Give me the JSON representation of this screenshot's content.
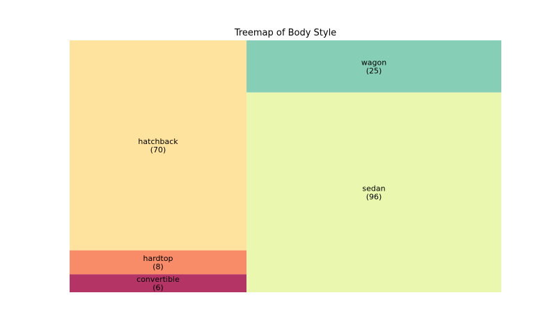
{
  "chart_data": {
    "type": "treemap",
    "title": "Treemap of Body Style",
    "items": [
      {
        "label": "convertible",
        "value": 6,
        "value_text": "(6)",
        "color": "#b43466"
      },
      {
        "label": "hardtop",
        "value": 8,
        "value_text": "(8)",
        "color": "#f88c69"
      },
      {
        "label": "hatchback",
        "value": 70,
        "value_text": "(70)",
        "color": "#fee39f"
      },
      {
        "label": "sedan",
        "value": 96,
        "value_text": "(96)",
        "color": "#eaf7af"
      },
      {
        "label": "wagon",
        "value": 25,
        "value_text": "(25)",
        "color": "#86cfb6"
      }
    ]
  }
}
